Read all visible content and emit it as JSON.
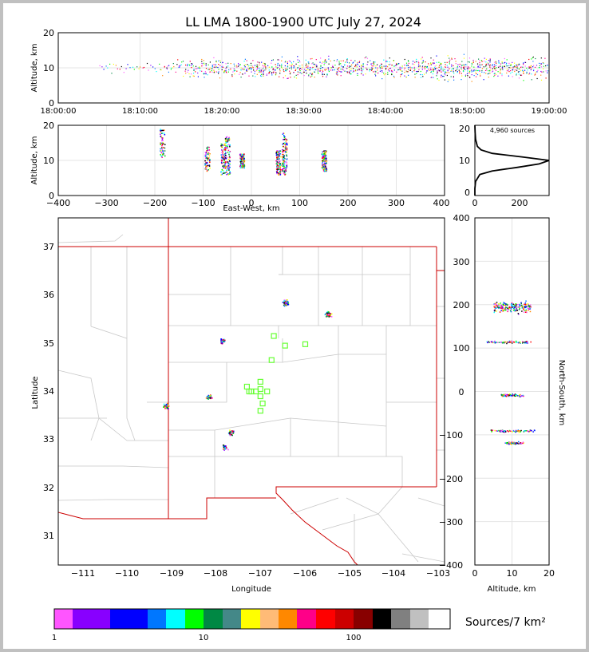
{
  "title": "LL LMA 1800-1900 UTC July 27, 2024",
  "time_panel": {
    "ylabel": "Altitude, km",
    "y_ticks": [
      "0",
      "10",
      "20"
    ],
    "x_ticks": [
      "18:00:00",
      "18:10:00",
      "18:20:00",
      "18:30:00",
      "18:40:00",
      "18:50:00",
      "19:00:00"
    ]
  },
  "ew_panel": {
    "ylabel": "Altitude, km",
    "xlabel": "East-West, km",
    "y_ticks": [
      "0",
      "10",
      "20"
    ],
    "x_ticks": [
      "−400",
      "−300",
      "−200",
      "−100",
      "0",
      "100",
      "200",
      "300",
      "400"
    ]
  },
  "hist_panel": {
    "sources_label": "4,960 sources",
    "y_ticks": [
      "0",
      "10",
      "20"
    ],
    "x_ticks": [
      "0",
      "200"
    ]
  },
  "map_panel": {
    "xlabel": "Longitude",
    "ylabel": "Latitude",
    "lon_ticks": [
      "−111",
      "−110",
      "−109",
      "−108",
      "−107",
      "−106",
      "−105",
      "−104",
      "−103"
    ],
    "lat_ticks": [
      "31",
      "32",
      "33",
      "34",
      "35",
      "36",
      "37"
    ]
  },
  "ns_panel": {
    "xlabel": "Altitude, km",
    "ylabel": "North-South, km",
    "y_ticks": [
      "−400",
      "−300",
      "−200",
      "−100",
      "0",
      "100",
      "200",
      "300",
      "400"
    ],
    "x_ticks": [
      "0",
      "10",
      "20"
    ]
  },
  "colorbar": {
    "label": "Sources/7 km²",
    "tick_labels": [
      "1",
      "10",
      "100"
    ],
    "colors": [
      "#ff55ff",
      "#8800ff",
      "#0000ff",
      "#0077ff",
      "#00ffff",
      "#00ff00",
      "#008844",
      "#448888",
      "#ffff00",
      "#ffbb77",
      "#ff8800",
      "#ff0088",
      "#ff0000",
      "#cc0000",
      "#880000",
      "#000000",
      "#808080",
      "#c0c0c0",
      "#ffffff"
    ]
  },
  "chart_data": {
    "type": "scatter",
    "time_altitude": {
      "x_range": [
        "18:00:00",
        "19:00:00"
      ],
      "ylim": [
        0,
        20
      ],
      "activity_minutes": [
        [
          8,
          4
        ],
        [
          12,
          4
        ],
        [
          17,
          9
        ],
        [
          22,
          9
        ],
        [
          28,
          10
        ],
        [
          32,
          10
        ],
        [
          38,
          10
        ],
        [
          42,
          11
        ],
        [
          45,
          11
        ],
        [
          48,
          12
        ],
        [
          52,
          12
        ],
        [
          55,
          11
        ],
        [
          58,
          10
        ],
        [
          60,
          9
        ]
      ]
    },
    "east_west": {
      "xlim": [
        -400,
        400
      ],
      "ylim": [
        0,
        20
      ],
      "clusters": [
        {
          "x": -185,
          "alt_min": 11,
          "alt_max": 19
        },
        {
          "x": -92,
          "alt_min": 7,
          "alt_max": 14
        },
        {
          "x": -60,
          "alt_min": 6,
          "alt_max": 15
        },
        {
          "x": -50,
          "alt_min": 6,
          "alt_max": 17
        },
        {
          "x": -20,
          "alt_min": 8,
          "alt_max": 12
        },
        {
          "x": 55,
          "alt_min": 6,
          "alt_max": 13
        },
        {
          "x": 68,
          "alt_min": 6,
          "alt_max": 18
        },
        {
          "x": 150,
          "alt_min": 7,
          "alt_max": 13
        }
      ]
    },
    "altitude_histogram": {
      "ylim": [
        0,
        20
      ],
      "xlim": [
        0,
        300
      ],
      "altitude_km": [
        0,
        2,
        4,
        6,
        7,
        8,
        9,
        10,
        11,
        12,
        13,
        14,
        16,
        18,
        20
      ],
      "count": [
        0,
        0,
        3,
        20,
        70,
        170,
        260,
        300,
        190,
        70,
        25,
        10,
        3,
        1,
        0
      ]
    },
    "plan_view": {
      "lon_range": [
        -111.5,
        -102.9
      ],
      "lat_range": [
        30.4,
        37.6
      ],
      "stations_lonlat": [
        [
          -107.3,
          34.1
        ],
        [
          -107.2,
          34.0
        ],
        [
          -107.1,
          34.0
        ],
        [
          -107.0,
          34.2
        ],
        [
          -107.0,
          34.05
        ],
        [
          -107.0,
          33.9
        ],
        [
          -106.95,
          33.75
        ],
        [
          -107.0,
          33.6
        ],
        [
          -106.85,
          34.0
        ],
        [
          -106.75,
          34.65
        ],
        [
          -106.7,
          35.15
        ],
        [
          -106.45,
          34.95
        ],
        [
          -106.0,
          34.98
        ],
        [
          -107.25,
          34.0
        ]
      ],
      "source_regions_lonlat": [
        {
          "lon": -106.45,
          "lat": 35.85
        },
        {
          "lon": -105.5,
          "lat": 35.6
        },
        {
          "lon": -107.85,
          "lat": 35.05
        },
        {
          "lon": -109.1,
          "lat": 33.7
        },
        {
          "lon": -107.65,
          "lat": 33.15
        },
        {
          "lon": -107.8,
          "lat": 32.85
        },
        {
          "lon": -108.15,
          "lat": 33.9
        }
      ]
    },
    "north_south": {
      "xlim": [
        0,
        20
      ],
      "ylim": [
        -400,
        400
      ],
      "clusters": [
        {
          "y": 195,
          "alt_min": 5,
          "alt_max": 15
        },
        {
          "y": 115,
          "alt_min": 3,
          "alt_max": 15
        },
        {
          "y": -8,
          "alt_min": 7,
          "alt_max": 13
        },
        {
          "y": -90,
          "alt_min": 4,
          "alt_max": 16
        },
        {
          "y": -118,
          "alt_min": 8,
          "alt_max": 13
        }
      ]
    }
  }
}
